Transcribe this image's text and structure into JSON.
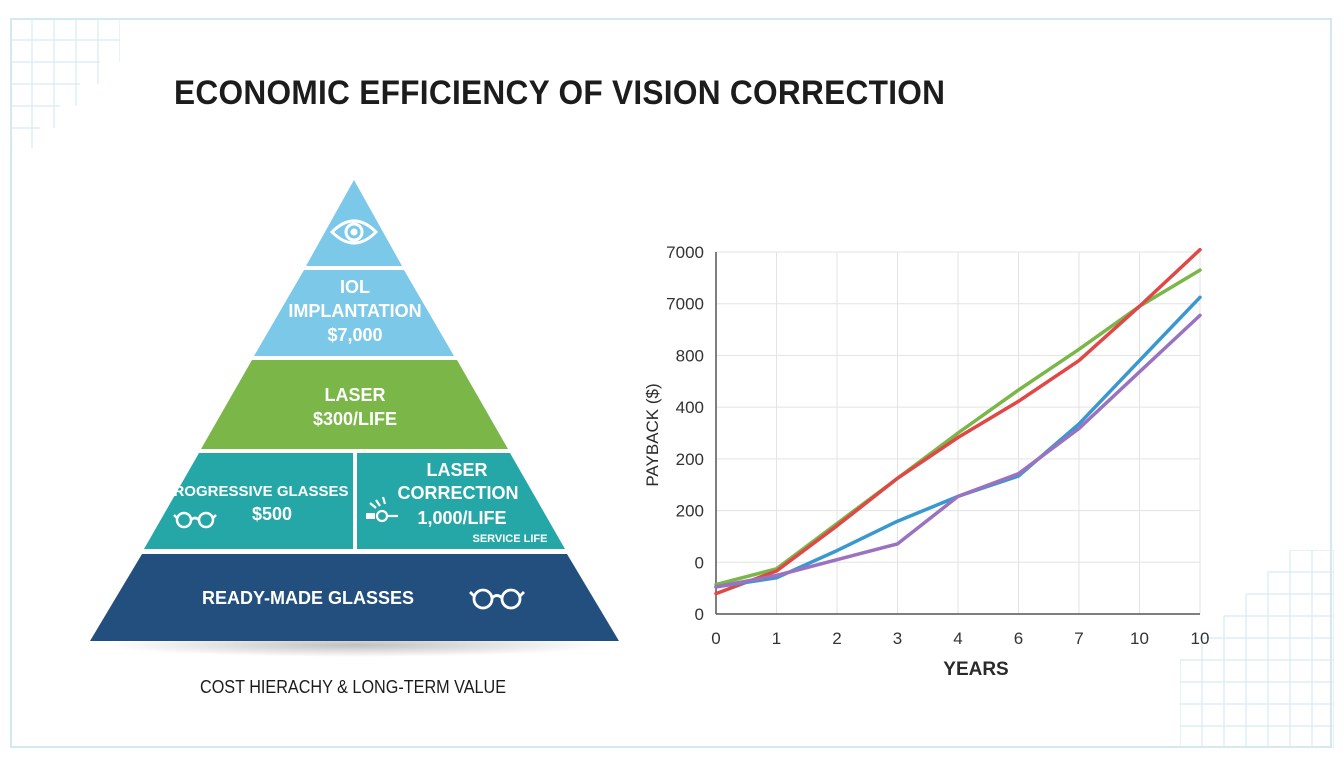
{
  "title": "ECONOMIC EFFICIENCY OF VISION CORRECTION",
  "colors": {
    "light_blue": "#7cc8e8",
    "green": "#7ab648",
    "teal": "#26a7a7",
    "navy": "#234f7e"
  },
  "pyramid": {
    "caption": "COST HIERACHY & LONG-TERM VALUE",
    "top_icon": "eye-icon",
    "tier_iol": {
      "line1": "IOL",
      "line2": "IMPLANTATION",
      "line3": "$7,000"
    },
    "tier_laser": {
      "line1": "LASER",
      "line2": "$300/LIFE"
    },
    "tier_progressive": {
      "line1": "PROGRESSIVE GLASSES",
      "line2": "$500",
      "icon": "glasses-icon"
    },
    "tier_laser_correction": {
      "line1": "LASER",
      "line2": "CORRECTION",
      "line3": "1,000/LIFE",
      "line4": "SERVICE LIFE",
      "icon": "laser-icon"
    },
    "tier_ready": {
      "line1": "READY-MADE GLASSES",
      "icon": "glasses-icon"
    }
  },
  "chart_data": {
    "type": "line",
    "xlabel": "YEARS",
    "ylabel": "PAYBACK ($)",
    "x_tick_labels": [
      "0",
      "1",
      "2",
      "3",
      "4",
      "6",
      "7",
      "10",
      "10"
    ],
    "y_tick_labels": [
      "0",
      "0",
      "200",
      "200",
      "400",
      "800",
      "7000",
      "7000"
    ],
    "grid": true,
    "series": [
      {
        "color": "#7ab648",
        "values": [
          0.65,
          1.0,
          2.0,
          3.0,
          4.0,
          4.95,
          5.85,
          6.8,
          7.6
        ]
      },
      {
        "color": "#e04848",
        "values": [
          0.45,
          0.95,
          1.95,
          3.0,
          3.9,
          4.7,
          5.6,
          6.8,
          8.05
        ]
      },
      {
        "color": "#3a98d0",
        "values": [
          0.6,
          0.8,
          1.4,
          2.05,
          2.6,
          3.05,
          4.2,
          5.6,
          7.0
        ]
      },
      {
        "color": "#9a72c0",
        "values": [
          0.6,
          0.85,
          1.2,
          1.55,
          2.6,
          3.1,
          4.1,
          5.35,
          6.6
        ]
      }
    ],
    "ylim": [
      0,
      8
    ]
  }
}
